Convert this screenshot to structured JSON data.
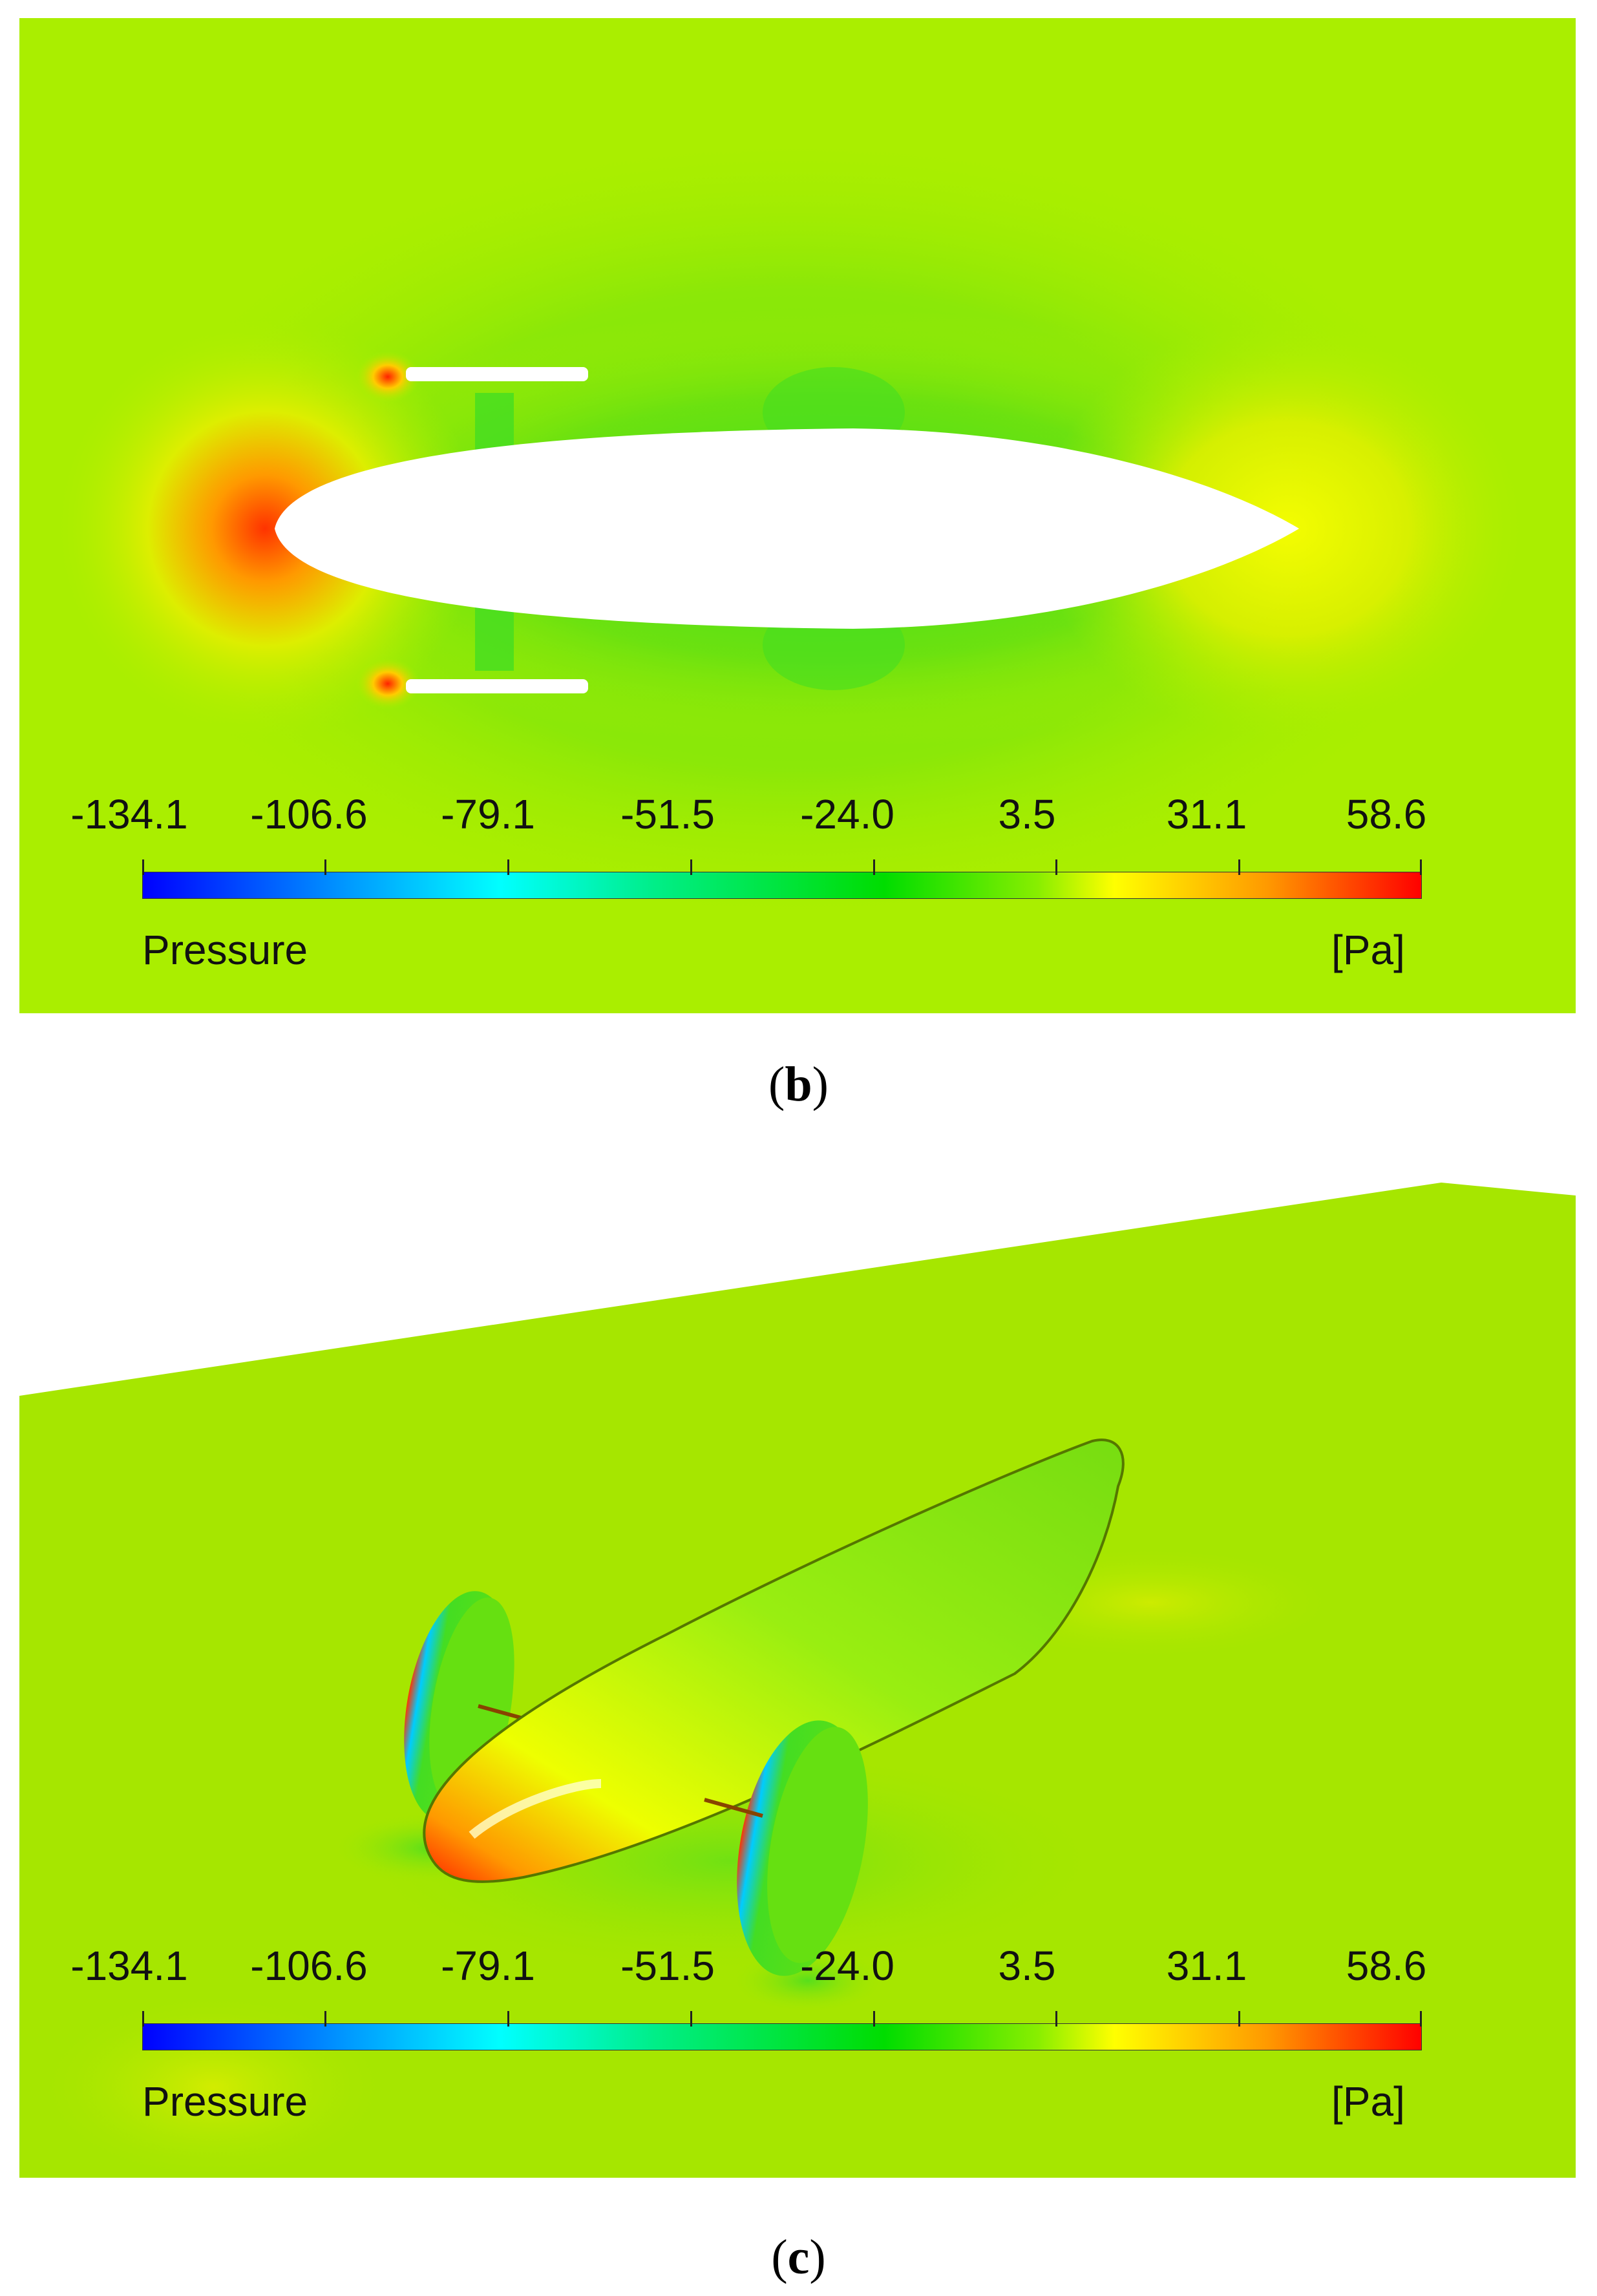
{
  "figure": {
    "panel_b": {
      "caption_open": "(",
      "caption_letter": "b",
      "caption_close": ")"
    },
    "panel_c": {
      "caption_open": "(",
      "caption_letter": "c",
      "caption_close": ")"
    }
  },
  "colorbar": {
    "ticks": [
      "-134.1",
      "-106.6",
      "-79.1",
      "-51.5",
      "-24.0",
      "3.5",
      "31.1",
      "58.6"
    ],
    "quantity": "Pressure",
    "unit": "[Pa]",
    "colors": {
      "min": "#0000ff",
      "low": "#00ffff",
      "mid": "#00dd00",
      "high": "#ffff00",
      "max": "#ff0000"
    }
  },
  "background_color": "#aaee00"
}
